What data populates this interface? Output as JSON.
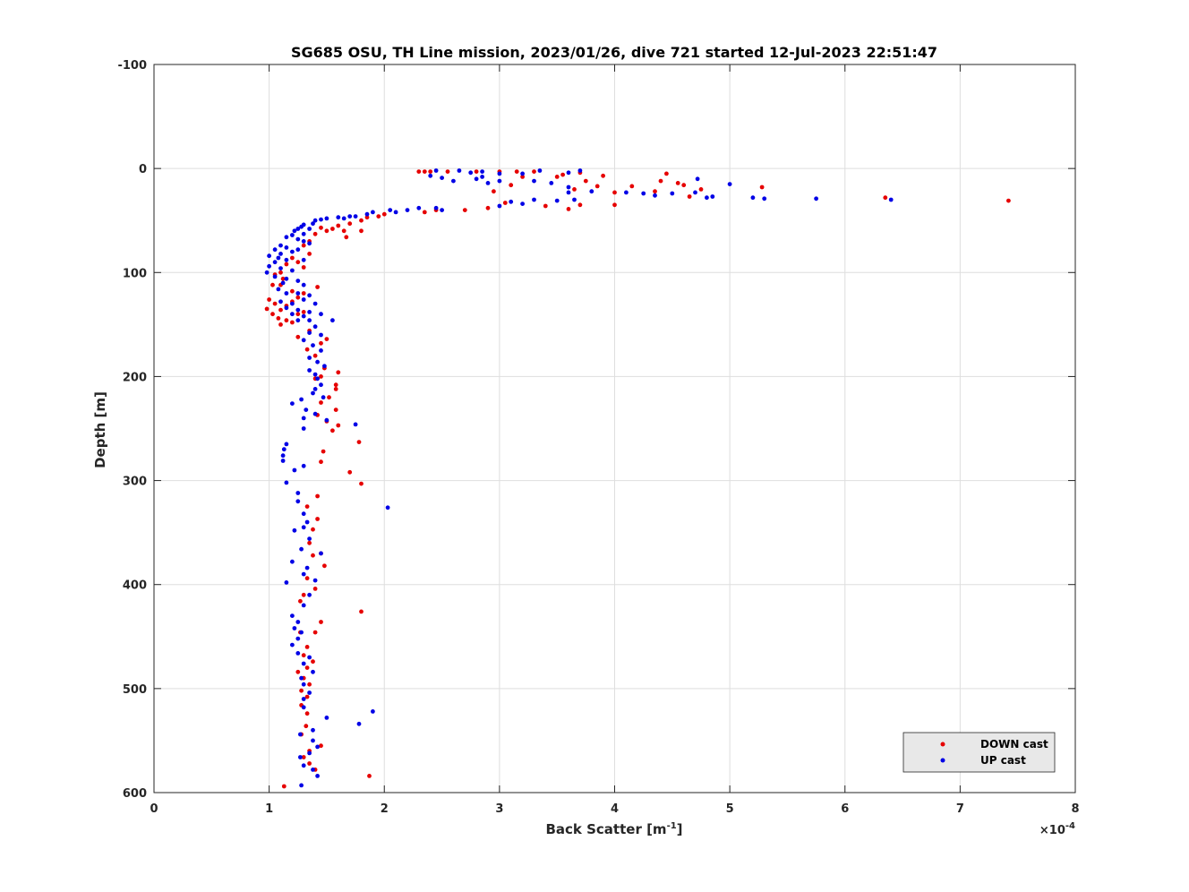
{
  "chart_data": {
    "type": "scatter",
    "title": "SG685 OSU, TH Line mission, 2023/01/26, dive 721 started 12-Jul-2023 22:51:47",
    "xlabel": "Back Scatter [m",
    "xlabel_sup": "-1",
    "xlabel_end": "]",
    "ylabel": "Depth [m]",
    "x_exponent_prefix": "×10",
    "x_exponent_power": "-4",
    "xlim": [
      0,
      8
    ],
    "ylim": [
      -100,
      600
    ],
    "y_reversed": true,
    "x_scale_note": "x values in units of 1e-4 m^-1",
    "xticks": [
      "0",
      "1",
      "2",
      "3",
      "4",
      "5",
      "6",
      "7",
      "8"
    ],
    "yticks": [
      "-100",
      "0",
      "100",
      "200",
      "300",
      "400",
      "500",
      "600"
    ],
    "grid": true,
    "legend_position": "bottom-right",
    "series": [
      {
        "name": "DOWN cast",
        "color": "#e60000",
        "points": [
          [
            2.3,
            3
          ],
          [
            2.35,
            3
          ],
          [
            2.4,
            3
          ],
          [
            2.55,
            3
          ],
          [
            2.8,
            3
          ],
          [
            3.0,
            3
          ],
          [
            3.15,
            3
          ],
          [
            3.3,
            3
          ],
          [
            3.5,
            8
          ],
          [
            3.55,
            6
          ],
          [
            3.7,
            4
          ],
          [
            3.9,
            7
          ],
          [
            4.45,
            5
          ],
          [
            4.4,
            12
          ],
          [
            4.55,
            14
          ],
          [
            4.6,
            16
          ],
          [
            4.75,
            20
          ],
          [
            5.28,
            18
          ],
          [
            4.15,
            17
          ],
          [
            4.0,
            23
          ],
          [
            3.85,
            17
          ],
          [
            3.75,
            12
          ],
          [
            3.65,
            20
          ],
          [
            4.65,
            27
          ],
          [
            4.35,
            22
          ],
          [
            3.2,
            8
          ],
          [
            3.1,
            16
          ],
          [
            2.95,
            22
          ],
          [
            6.35,
            28
          ],
          [
            7.42,
            31
          ],
          [
            2.7,
            40
          ],
          [
            2.9,
            38
          ],
          [
            3.05,
            33
          ],
          [
            3.4,
            36
          ],
          [
            3.6,
            39
          ],
          [
            3.7,
            35
          ],
          [
            4.0,
            35
          ],
          [
            2.35,
            42
          ],
          [
            2.45,
            40
          ],
          [
            1.95,
            46
          ],
          [
            2.0,
            44
          ],
          [
            1.85,
            47
          ],
          [
            1.8,
            50
          ],
          [
            1.7,
            53
          ],
          [
            1.6,
            55
          ],
          [
            1.65,
            60
          ],
          [
            1.8,
            60
          ],
          [
            1.5,
            60
          ],
          [
            1.45,
            57
          ],
          [
            1.55,
            58
          ],
          [
            1.67,
            66
          ],
          [
            1.4,
            63
          ],
          [
            1.35,
            70
          ],
          [
            1.3,
            74
          ],
          [
            1.35,
            82
          ],
          [
            1.25,
            90
          ],
          [
            1.2,
            86
          ],
          [
            1.3,
            95
          ],
          [
            1.15,
            92
          ],
          [
            1.1,
            100
          ],
          [
            1.05,
            102
          ],
          [
            1.12,
            106
          ],
          [
            1.1,
            112
          ],
          [
            1.03,
            112
          ],
          [
            1.2,
            118
          ],
          [
            1.25,
            124
          ],
          [
            1.3,
            120
          ],
          [
            1.42,
            114
          ],
          [
            1.0,
            126
          ],
          [
            1.05,
            130
          ],
          [
            1.1,
            136
          ],
          [
            1.15,
            132
          ],
          [
            1.2,
            128
          ],
          [
            0.98,
            135
          ],
          [
            1.03,
            140
          ],
          [
            1.08,
            144
          ],
          [
            1.15,
            146
          ],
          [
            1.1,
            150
          ],
          [
            1.2,
            148
          ],
          [
            1.25,
            140
          ],
          [
            1.3,
            138
          ],
          [
            1.35,
            156
          ],
          [
            1.45,
            168
          ],
          [
            1.5,
            164
          ],
          [
            1.25,
            162
          ],
          [
            1.33,
            174
          ],
          [
            1.4,
            180
          ],
          [
            1.48,
            192
          ],
          [
            1.45,
            200
          ],
          [
            1.6,
            196
          ],
          [
            1.4,
            202
          ],
          [
            1.58,
            208
          ],
          [
            1.58,
            212
          ],
          [
            1.52,
            220
          ],
          [
            1.45,
            225
          ],
          [
            1.58,
            232
          ],
          [
            1.42,
            237
          ],
          [
            1.5,
            243
          ],
          [
            1.6,
            247
          ],
          [
            1.55,
            252
          ],
          [
            1.78,
            263
          ],
          [
            1.47,
            272
          ],
          [
            1.45,
            282
          ],
          [
            1.7,
            292
          ],
          [
            1.8,
            303
          ],
          [
            1.42,
            315
          ],
          [
            1.33,
            325
          ],
          [
            1.42,
            337
          ],
          [
            1.38,
            347
          ],
          [
            1.35,
            360
          ],
          [
            1.45,
            370
          ],
          [
            1.38,
            372
          ],
          [
            1.48,
            382
          ],
          [
            1.33,
            394
          ],
          [
            1.4,
            404
          ],
          [
            1.3,
            410
          ],
          [
            1.27,
            416
          ],
          [
            1.8,
            426
          ],
          [
            1.45,
            436
          ],
          [
            1.4,
            446
          ],
          [
            1.27,
            446
          ],
          [
            1.33,
            460
          ],
          [
            1.3,
            468
          ],
          [
            1.38,
            474
          ],
          [
            1.33,
            480
          ],
          [
            1.25,
            484
          ],
          [
            1.3,
            490
          ],
          [
            1.35,
            496
          ],
          [
            1.28,
            502
          ],
          [
            1.33,
            508
          ],
          [
            1.28,
            516
          ],
          [
            1.33,
            524
          ],
          [
            1.32,
            536
          ],
          [
            1.28,
            544
          ],
          [
            1.45,
            555
          ],
          [
            1.35,
            560
          ],
          [
            1.3,
            566
          ],
          [
            1.35,
            572
          ],
          [
            1.4,
            578
          ],
          [
            1.87,
            584
          ],
          [
            1.13,
            594
          ]
        ]
      },
      {
        "name": "UP cast",
        "color": "#0000e6",
        "points": [
          [
            2.45,
            2
          ],
          [
            2.65,
            2
          ],
          [
            2.75,
            4
          ],
          [
            2.85,
            3
          ],
          [
            3.0,
            5
          ],
          [
            3.2,
            5
          ],
          [
            3.35,
            2
          ],
          [
            3.6,
            4
          ],
          [
            3.7,
            2
          ],
          [
            2.4,
            7
          ],
          [
            2.5,
            9
          ],
          [
            2.6,
            12
          ],
          [
            2.8,
            10
          ],
          [
            2.85,
            8
          ],
          [
            2.9,
            14
          ],
          [
            3.0,
            12
          ],
          [
            3.3,
            12
          ],
          [
            3.45,
            14
          ],
          [
            3.6,
            18
          ],
          [
            3.8,
            22
          ],
          [
            3.6,
            23
          ],
          [
            4.1,
            23
          ],
          [
            4.25,
            24
          ],
          [
            4.35,
            26
          ],
          [
            4.5,
            24
          ],
          [
            4.7,
            23
          ],
          [
            4.72,
            10
          ],
          [
            4.85,
            27
          ],
          [
            4.8,
            28
          ],
          [
            5.0,
            15
          ],
          [
            5.2,
            28
          ],
          [
            5.3,
            29
          ],
          [
            5.75,
            29
          ],
          [
            6.4,
            30
          ],
          [
            3.3,
            30
          ],
          [
            3.1,
            32
          ],
          [
            3.2,
            34
          ],
          [
            3.5,
            31
          ],
          [
            3.65,
            30
          ],
          [
            3.0,
            36
          ],
          [
            2.45,
            38
          ],
          [
            2.5,
            40
          ],
          [
            2.3,
            38
          ],
          [
            2.2,
            40
          ],
          [
            2.1,
            42
          ],
          [
            2.05,
            40
          ],
          [
            1.9,
            42
          ],
          [
            1.85,
            44
          ],
          [
            1.75,
            46
          ],
          [
            1.7,
            46
          ],
          [
            1.65,
            48
          ],
          [
            1.6,
            47
          ],
          [
            1.5,
            48
          ],
          [
            1.45,
            49
          ],
          [
            1.4,
            50
          ],
          [
            1.38,
            53
          ],
          [
            1.3,
            54
          ],
          [
            1.28,
            56
          ],
          [
            1.35,
            58
          ],
          [
            1.25,
            58
          ],
          [
            1.22,
            60
          ],
          [
            1.3,
            63
          ],
          [
            1.2,
            64
          ],
          [
            1.15,
            66
          ],
          [
            1.25,
            68
          ],
          [
            1.3,
            70
          ],
          [
            1.35,
            72
          ],
          [
            1.1,
            74
          ],
          [
            1.15,
            76
          ],
          [
            1.05,
            78
          ],
          [
            1.2,
            80
          ],
          [
            1.25,
            78
          ],
          [
            1.1,
            82
          ],
          [
            1.0,
            84
          ],
          [
            1.08,
            86
          ],
          [
            1.15,
            88
          ],
          [
            1.3,
            88
          ],
          [
            1.05,
            90
          ],
          [
            1.0,
            94
          ],
          [
            1.1,
            96
          ],
          [
            1.2,
            98
          ],
          [
            0.98,
            100
          ],
          [
            1.05,
            104
          ],
          [
            1.15,
            106
          ],
          [
            1.25,
            108
          ],
          [
            1.12,
            110
          ],
          [
            1.3,
            112
          ],
          [
            1.08,
            116
          ],
          [
            1.15,
            120
          ],
          [
            1.25,
            120
          ],
          [
            1.35,
            122
          ],
          [
            1.3,
            126
          ],
          [
            1.1,
            128
          ],
          [
            1.2,
            130
          ],
          [
            1.4,
            130
          ],
          [
            1.15,
            134
          ],
          [
            1.25,
            136
          ],
          [
            1.35,
            138
          ],
          [
            1.2,
            140
          ],
          [
            1.3,
            142
          ],
          [
            1.45,
            140
          ],
          [
            1.35,
            146
          ],
          [
            1.25,
            146
          ],
          [
            1.55,
            146
          ],
          [
            1.4,
            152
          ],
          [
            1.35,
            158
          ],
          [
            1.45,
            160
          ],
          [
            1.3,
            165
          ],
          [
            1.38,
            170
          ],
          [
            1.45,
            175
          ],
          [
            1.35,
            182
          ],
          [
            1.42,
            186
          ],
          [
            1.48,
            190
          ],
          [
            1.35,
            194
          ],
          [
            1.4,
            198
          ],
          [
            1.42,
            202
          ],
          [
            1.45,
            208
          ],
          [
            1.4,
            212
          ],
          [
            1.38,
            216
          ],
          [
            1.47,
            220
          ],
          [
            1.28,
            222
          ],
          [
            1.2,
            226
          ],
          [
            1.32,
            232
          ],
          [
            1.4,
            236
          ],
          [
            1.3,
            240
          ],
          [
            1.5,
            242
          ],
          [
            1.75,
            246
          ],
          [
            1.3,
            250
          ],
          [
            1.15,
            265
          ],
          [
            1.13,
            270
          ],
          [
            1.12,
            276
          ],
          [
            1.12,
            281
          ],
          [
            1.22,
            290
          ],
          [
            1.3,
            286
          ],
          [
            1.15,
            302
          ],
          [
            1.25,
            312
          ],
          [
            1.25,
            320
          ],
          [
            2.03,
            326
          ],
          [
            1.3,
            332
          ],
          [
            1.33,
            340
          ],
          [
            1.3,
            345
          ],
          [
            1.22,
            348
          ],
          [
            1.35,
            356
          ],
          [
            1.28,
            366
          ],
          [
            1.45,
            370
          ],
          [
            1.2,
            378
          ],
          [
            1.33,
            384
          ],
          [
            1.3,
            390
          ],
          [
            1.4,
            396
          ],
          [
            1.15,
            398
          ],
          [
            1.35,
            410
          ],
          [
            1.3,
            420
          ],
          [
            1.2,
            430
          ],
          [
            1.25,
            436
          ],
          [
            1.22,
            442
          ],
          [
            1.28,
            446
          ],
          [
            1.25,
            452
          ],
          [
            1.2,
            458
          ],
          [
            1.25,
            466
          ],
          [
            1.35,
            470
          ],
          [
            1.3,
            476
          ],
          [
            1.38,
            484
          ],
          [
            1.28,
            490
          ],
          [
            1.3,
            496
          ],
          [
            1.35,
            504
          ],
          [
            1.3,
            510
          ],
          [
            1.3,
            518
          ],
          [
            1.9,
            522
          ],
          [
            1.5,
            528
          ],
          [
            1.78,
            534
          ],
          [
            1.38,
            540
          ],
          [
            1.27,
            544
          ],
          [
            1.38,
            550
          ],
          [
            1.42,
            556
          ],
          [
            1.35,
            562
          ],
          [
            1.27,
            566
          ],
          [
            1.3,
            574
          ],
          [
            1.38,
            578
          ],
          [
            1.42,
            584
          ],
          [
            1.28,
            593
          ]
        ]
      }
    ]
  }
}
